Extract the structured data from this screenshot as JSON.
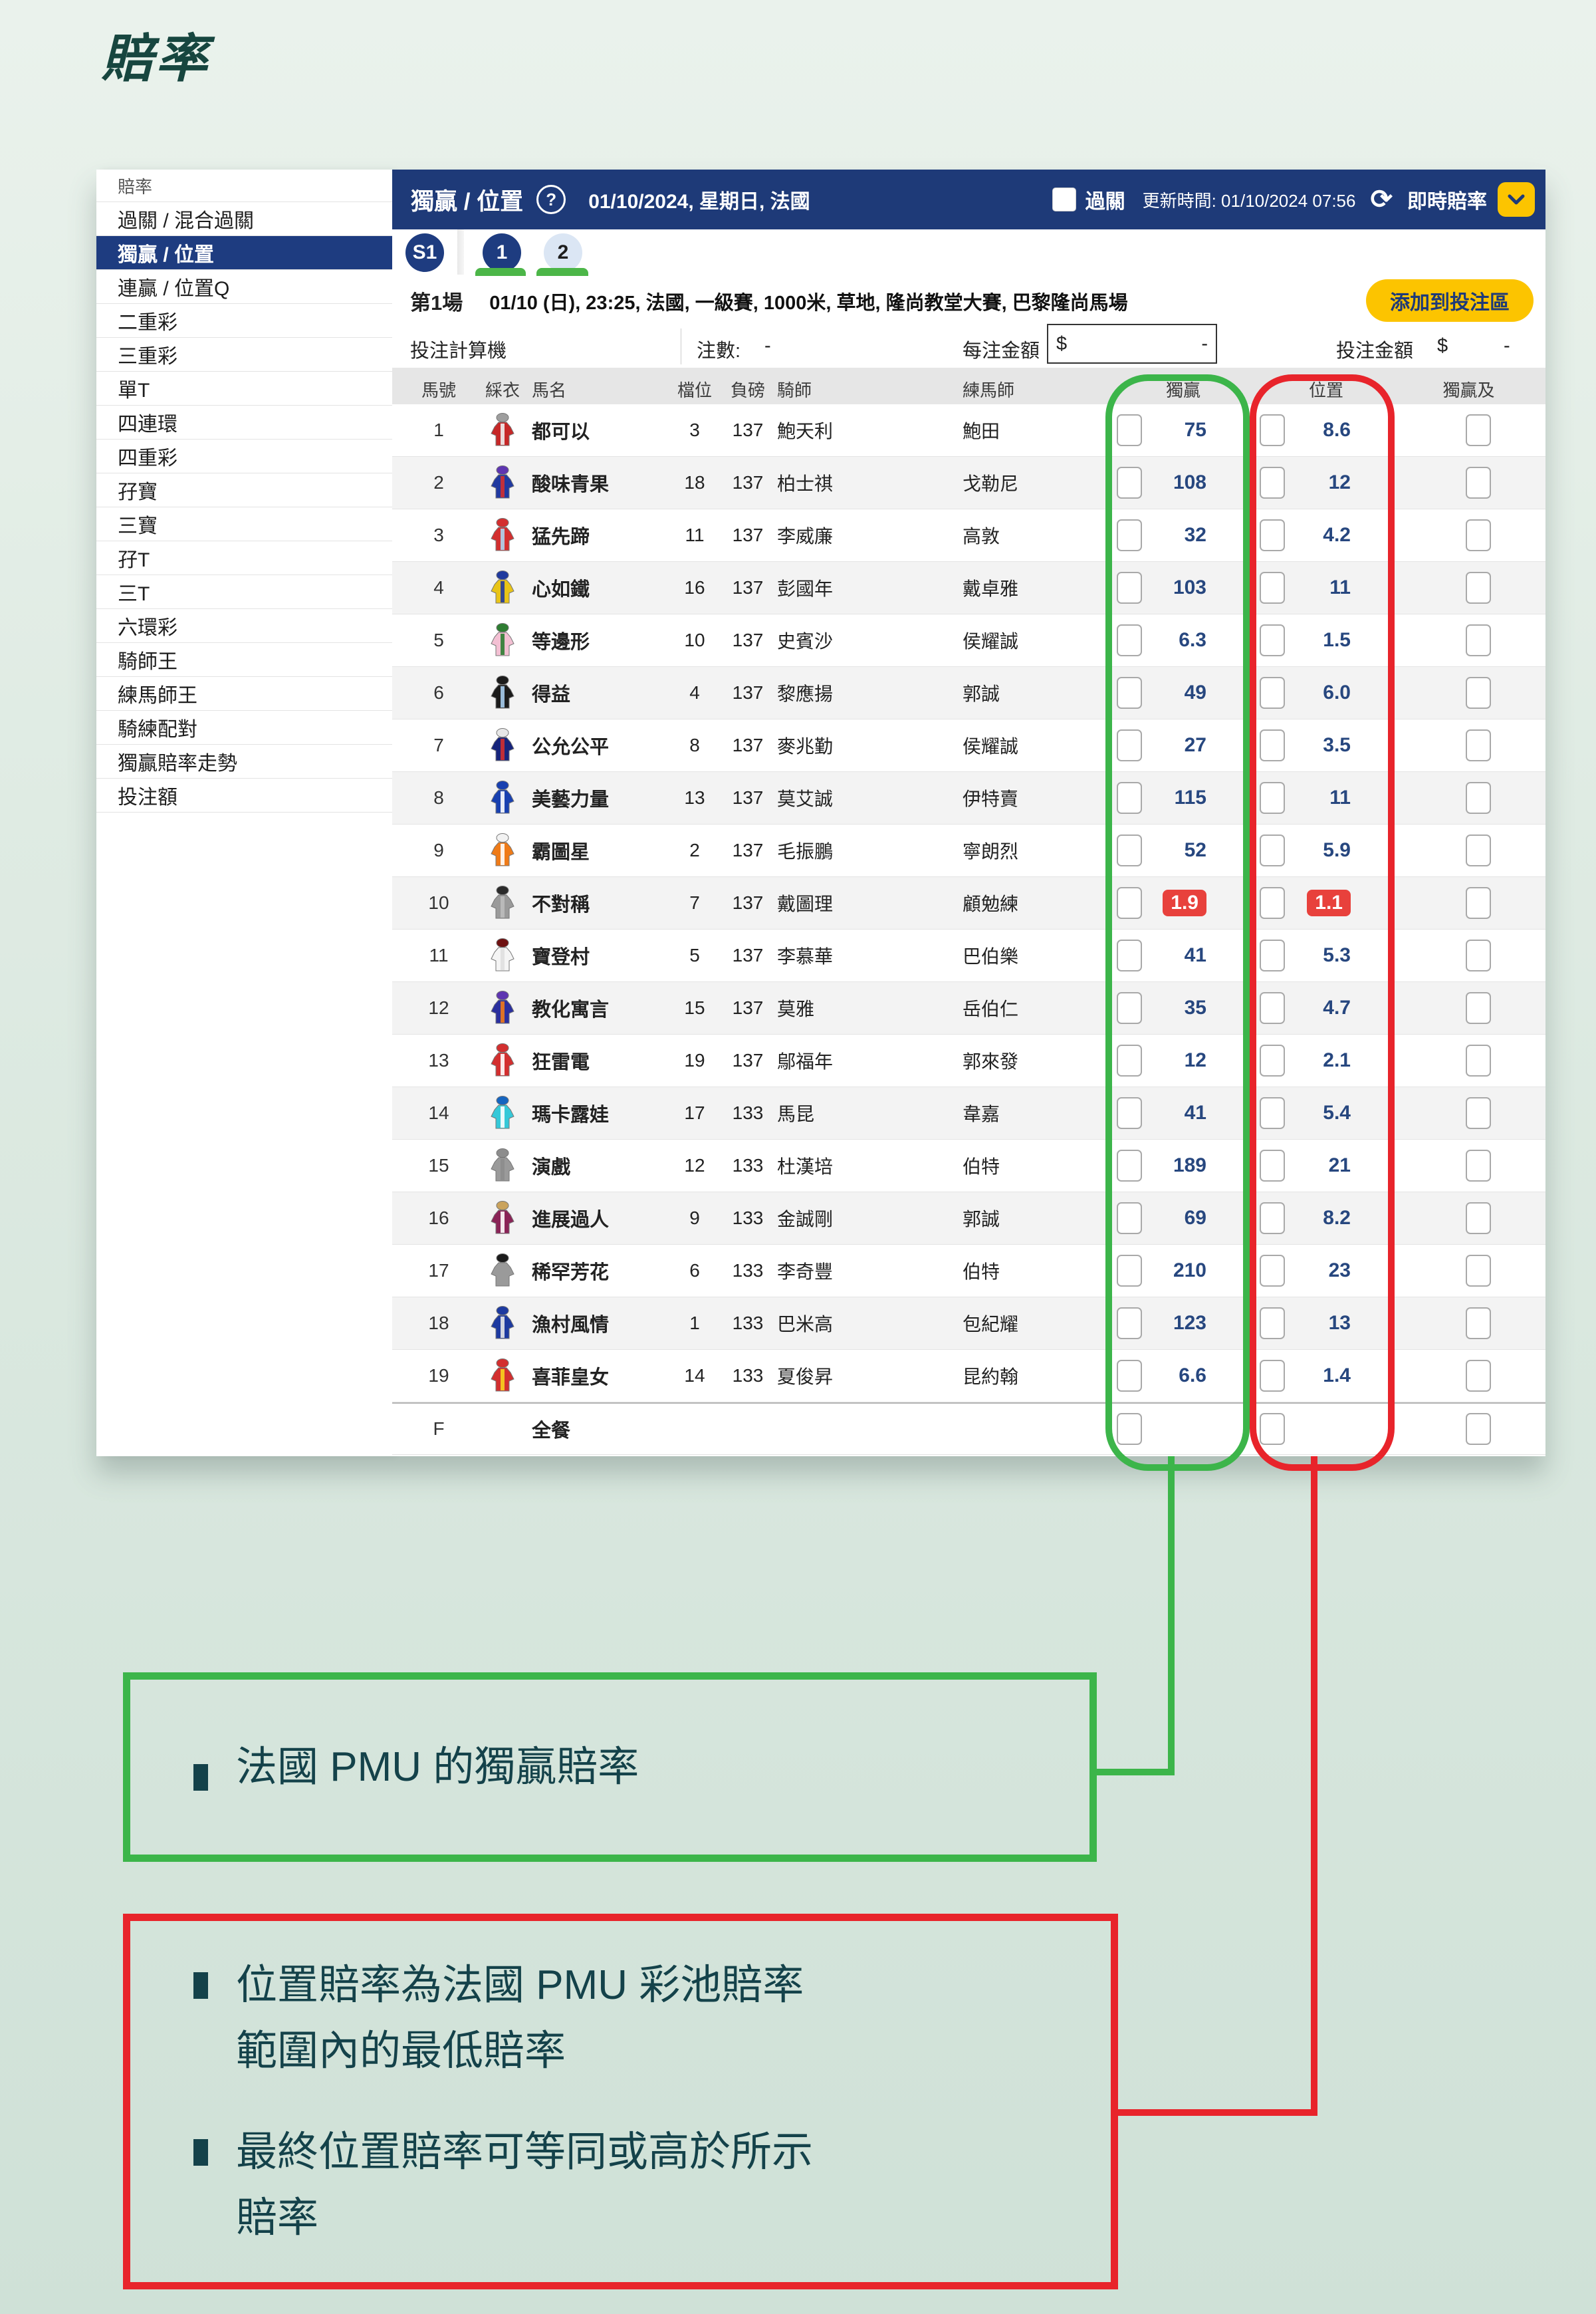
{
  "page_title": "賠率",
  "sidebar": {
    "header": "賠率",
    "items": [
      {
        "label": "過關 / 混合過關",
        "selected": false
      },
      {
        "label": "獨贏 / 位置",
        "selected": true
      },
      {
        "label": "連贏 / 位置Q",
        "selected": false
      },
      {
        "label": "二重彩",
        "selected": false
      },
      {
        "label": "三重彩",
        "selected": false
      },
      {
        "label": "單T",
        "selected": false
      },
      {
        "label": "四連環",
        "selected": false
      },
      {
        "label": "四重彩",
        "selected": false
      },
      {
        "label": "孖寶",
        "selected": false
      },
      {
        "label": "三寶",
        "selected": false
      },
      {
        "label": "孖T",
        "selected": false
      },
      {
        "label": "三T",
        "selected": false
      },
      {
        "label": "六環彩",
        "selected": false
      },
      {
        "label": "騎師王",
        "selected": false
      },
      {
        "label": "練馬師王",
        "selected": false
      },
      {
        "label": "騎練配對",
        "selected": false
      },
      {
        "label": "獨贏賠率走勢",
        "selected": false
      },
      {
        "label": "投注額",
        "selected": false
      }
    ]
  },
  "header": {
    "pool_title": "獨贏 / 位置",
    "help": "?",
    "date_line": "01/10/2024, 星期日, 法國",
    "allup_label": "過關",
    "update_time": "更新時間: 01/10/2024 07:56",
    "refresh_icon": "⟳",
    "live_odds_label": "即時賠率"
  },
  "tabs": {
    "meeting": "S1",
    "races": [
      {
        "label": "1",
        "selected": true
      },
      {
        "label": "2",
        "selected": false
      }
    ]
  },
  "race": {
    "label": "第1場",
    "details": "01/10 (日), 23:25, 法國, 一級賽, 1000米, 草地, 隆尚教堂大賽, 巴黎隆尚馬場",
    "add_button": "添加到投注區"
  },
  "calculator": {
    "title": "投注計算機",
    "bets_label": "注數:",
    "bets_value": "-",
    "unit_label": "每注金額",
    "currency": "$",
    "unit_value": "-",
    "total_label": "投注金額",
    "total_value": "-"
  },
  "table": {
    "columns": [
      "馬號",
      "綵衣",
      "馬名",
      "檔位",
      "負磅",
      "騎師",
      "練馬師",
      "獨贏",
      "位置",
      "獨贏及位置"
    ],
    "rows": [
      {
        "no": "1",
        "name": "都可以",
        "draw": "3",
        "weight": "137",
        "jockey": "鮑天利",
        "trainer": "鮑田",
        "win": "75",
        "place": "8.6",
        "hot": false,
        "silk": {
          "cap": "#9e9e9e",
          "body": "#c62828",
          "accent": "#eeeeee"
        }
      },
      {
        "no": "2",
        "name": "酸味青果",
        "draw": "18",
        "weight": "137",
        "jockey": "柏士祺",
        "trainer": "戈勒尼",
        "win": "108",
        "place": "12",
        "hot": false,
        "silk": {
          "cap": "#5e35b1",
          "body": "#2039a0",
          "accent": "#d23030"
        }
      },
      {
        "no": "3",
        "name": "猛先蹄",
        "draw": "11",
        "weight": "137",
        "jockey": "李威廉",
        "trainer": "高敦",
        "win": "32",
        "place": "4.2",
        "hot": false,
        "silk": {
          "cap": "#d32f2f",
          "body": "#d32f2f",
          "accent": "#aed6f1"
        }
      },
      {
        "no": "4",
        "name": "心如鐵",
        "draw": "16",
        "weight": "137",
        "jockey": "彭國年",
        "trainer": "戴卓雅",
        "win": "103",
        "place": "11",
        "hot": false,
        "silk": {
          "cap": "#203a9e",
          "body": "#e8c417",
          "accent": "#203a9e"
        }
      },
      {
        "no": "5",
        "name": "等邊形",
        "draw": "10",
        "weight": "137",
        "jockey": "史賓沙",
        "trainer": "侯耀誠",
        "win": "6.3",
        "place": "1.5",
        "hot": false,
        "silk": {
          "cap": "#2e7d32",
          "body": "#f3c0d3",
          "accent": "#2e7d32"
        }
      },
      {
        "no": "6",
        "name": "得益",
        "draw": "4",
        "weight": "137",
        "jockey": "黎應揚",
        "trainer": "郭誠",
        "win": "49",
        "place": "6.0",
        "hot": false,
        "silk": {
          "cap": "#1b1b1b",
          "body": "#1b1b1b",
          "accent": "#a7cdee"
        }
      },
      {
        "no": "7",
        "name": "公允公平",
        "draw": "8",
        "weight": "137",
        "jockey": "麥兆勤",
        "trainer": "侯耀誠",
        "win": "27",
        "place": "3.5",
        "hot": false,
        "silk": {
          "cap": "#e8e8e8",
          "body": "#16247c",
          "accent": "#d23030"
        }
      },
      {
        "no": "8",
        "name": "美藝力量",
        "draw": "13",
        "weight": "137",
        "jockey": "莫艾誠",
        "trainer": "伊特賣",
        "win": "115",
        "place": "11",
        "hot": false,
        "silk": {
          "cap": "#1840b0",
          "body": "#1840b0",
          "accent": "#ffffff"
        }
      },
      {
        "no": "9",
        "name": "霸圖星",
        "draw": "2",
        "weight": "137",
        "jockey": "毛振鵬",
        "trainer": "寧朗烈",
        "win": "52",
        "place": "5.9",
        "hot": false,
        "silk": {
          "cap": "#f2f2f2",
          "body": "#ef7b18",
          "accent": "#ffffff"
        }
      },
      {
        "no": "10",
        "name": "不對稱",
        "draw": "7",
        "weight": "137",
        "jockey": "戴圖理",
        "trainer": "顧勉練",
        "win": "1.9",
        "place": "1.1",
        "hot": true,
        "silk": {
          "cap": "#2b2b2b",
          "body": "#9a9a9a",
          "accent": "#bdbdbd"
        }
      },
      {
        "no": "11",
        "name": "寶登村",
        "draw": "5",
        "weight": "137",
        "jockey": "李慕華",
        "trainer": "巴伯樂",
        "win": "41",
        "place": "5.3",
        "hot": false,
        "silk": {
          "cap": "#6e1111",
          "body": "#f5f5f5",
          "accent": "#e0e0e0"
        }
      },
      {
        "no": "12",
        "name": "教化寓言",
        "draw": "15",
        "weight": "137",
        "jockey": "莫雅",
        "trainer": "岳伯仁",
        "win": "35",
        "place": "4.7",
        "hot": false,
        "silk": {
          "cap": "#5e35b1",
          "body": "#2a2f9e",
          "accent": "#ef7b18"
        }
      },
      {
        "no": "13",
        "name": "狂雷電",
        "draw": "19",
        "weight": "137",
        "jockey": "鄔福年",
        "trainer": "郭來發",
        "win": "12",
        "place": "2.1",
        "hot": false,
        "silk": {
          "cap": "#d32f2f",
          "body": "#d32f2f",
          "accent": "#ffffff"
        }
      },
      {
        "no": "14",
        "name": "瑪卡露娃",
        "draw": "17",
        "weight": "133",
        "jockey": "馬昆",
        "trainer": "韋嘉",
        "win": "41",
        "place": "5.4",
        "hot": false,
        "silk": {
          "cap": "#1565c0",
          "body": "#35c8d8",
          "accent": "#ffffff"
        }
      },
      {
        "no": "15",
        "name": "演戲",
        "draw": "12",
        "weight": "133",
        "jockey": "杜漢培",
        "trainer": "伯特",
        "win": "189",
        "place": "21",
        "hot": false,
        "silk": {
          "cap": "#8d8d8d",
          "body": "#9a9a9a",
          "accent": "#8d8d8d"
        }
      },
      {
        "no": "16",
        "name": "進展過人",
        "draw": "9",
        "weight": "133",
        "jockey": "金誠剛",
        "trainer": "郭誠",
        "win": "69",
        "place": "8.2",
        "hot": false,
        "silk": {
          "cap": "#caa35c",
          "body": "#8a2457",
          "accent": "#ffffff"
        }
      },
      {
        "no": "17",
        "name": "稀罕芳花",
        "draw": "6",
        "weight": "133",
        "jockey": "李奇豐",
        "trainer": "伯特",
        "win": "210",
        "place": "23",
        "hot": false,
        "silk": {
          "cap": "#1b1b1b",
          "body": "#9a9a9a",
          "accent": "#9a9a9a"
        }
      },
      {
        "no": "18",
        "name": "漁村風情",
        "draw": "1",
        "weight": "133",
        "jockey": "巴米高",
        "trainer": "包紀耀",
        "win": "123",
        "place": "13",
        "hot": false,
        "silk": {
          "cap": "#1d3aa0",
          "body": "#1d3aa0",
          "accent": "#e8e8e8"
        }
      },
      {
        "no": "19",
        "name": "喜菲皇女",
        "draw": "14",
        "weight": "133",
        "jockey": "夏俊昇",
        "trainer": "昆約翰",
        "win": "6.6",
        "place": "1.4",
        "hot": false,
        "silk": {
          "cap": "#d32f2f",
          "body": "#d32f2f",
          "accent": "#f7d31e"
        }
      },
      {
        "no": "F",
        "name": "全餐",
        "draw": "",
        "weight": "",
        "jockey": "",
        "trainer": "",
        "win": "",
        "place": "",
        "hot": false,
        "banker": true,
        "silk": null
      }
    ]
  },
  "annotations": {
    "win_note": {
      "text": "法國 PMU 的獨贏賠率",
      "color": "#3cb54a"
    },
    "place_note": {
      "color": "#e8242b",
      "items": [
        {
          "line1": "位置賠率為法國 PMU 彩池賠率",
          "line2": "範圍內的最低賠率"
        },
        {
          "line1": "最終位置賠率可等同或高於所示",
          "line2": "賠率"
        }
      ]
    }
  },
  "colors": {
    "navy": "#1e3a78",
    "yellow": "#fcc400",
    "odds_blue": "#27477f",
    "hot_red": "#e8413c",
    "annotation_green": "#3cb54a",
    "annotation_red": "#e8242b"
  }
}
